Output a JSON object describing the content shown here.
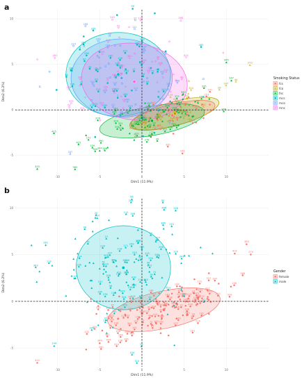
{
  "chart_data": [
    {
      "panel": "a",
      "type": "scatter",
      "xlabel": "Dim1 (11.9%)",
      "ylabel": "Dim2 (6.2%)",
      "xlim": [
        -15,
        15
      ],
      "ylim": [
        -7,
        11
      ],
      "x_ticks": [
        "-10",
        "-5",
        "0",
        "5",
        "10"
      ],
      "y_ticks": [
        "-5",
        "0",
        "5",
        "10"
      ],
      "x_tick_values": [
        -10,
        -5,
        0,
        5,
        10
      ],
      "y_tick_values": [
        -5,
        0,
        5,
        10
      ],
      "legend_title": "Smoking Status",
      "legend_placement": "right",
      "series": [
        {
          "name": "fcs",
          "color": "#F8766D",
          "centroid": [
            3.6,
            -0.6
          ],
          "ellipse": [
            5.2,
            1.2,
            14
          ],
          "spread": [
            2.6,
            1.0
          ],
          "count": 40
        },
        {
          "name": "fco",
          "color": "#B79F00",
          "centroid": [
            3.9,
            -0.4
          ],
          "ellipse": [
            5.4,
            1.3,
            15
          ],
          "spread": [
            2.5,
            1.1
          ],
          "count": 40
        },
        {
          "name": "fnc",
          "color": "#00BA38",
          "centroid": [
            1.2,
            -1.2
          ],
          "ellipse": [
            6.3,
            1.6,
            10
          ],
          "spread": [
            3.8,
            1.3
          ],
          "count": 85
        },
        {
          "name": "mcs",
          "color": "#00BFC4",
          "centroid": [
            -2.8,
            3.9
          ],
          "ellipse": [
            6.2,
            4.6,
            0
          ],
          "spread": [
            3.6,
            3.1
          ],
          "count": 60
        },
        {
          "name": "mco",
          "color": "#619CFF",
          "centroid": [
            -2.4,
            3.5
          ],
          "ellipse": [
            6.0,
            4.3,
            0
          ],
          "spread": [
            3.5,
            2.9
          ],
          "count": 50
        },
        {
          "name": "mnc",
          "color": "#F564E3",
          "centroid": [
            -0.9,
            3.1
          ],
          "ellipse": [
            6.3,
            4.2,
            -8
          ],
          "spread": [
            3.9,
            2.8
          ],
          "count": 55
        }
      ],
      "point_labels": [
        {
          "x": -1.1,
          "y": 11.3,
          "text": "56",
          "s": 3
        },
        {
          "x": -3.5,
          "y": 10.1,
          "text": "240",
          "s": 5
        },
        {
          "x": 4.6,
          "y": 10.0,
          "text": "288",
          "s": 5
        },
        {
          "x": 10.0,
          "y": 5.4,
          "text": "345",
          "s": 2
        },
        {
          "x": 12.8,
          "y": 5.1,
          "text": "273",
          "s": 1
        },
        {
          "x": -12.4,
          "y": -6.3,
          "text": "420",
          "s": 2
        },
        {
          "x": -5.0,
          "y": -4.3,
          "text": "344",
          "s": 2
        },
        {
          "x": -10.3,
          "y": 5.9,
          "text": "281",
          "s": 5
        },
        {
          "x": 10.6,
          "y": 3.4,
          "text": "347",
          "s": 2
        },
        {
          "x": 4.8,
          "y": -4.6,
          "text": "161",
          "s": 0
        }
      ]
    },
    {
      "panel": "b",
      "type": "scatter",
      "xlabel": "Dim1 (11.9%)",
      "ylabel": "Dim2 (6.2%)",
      "xlim": [
        -15,
        15
      ],
      "ylim": [
        -7,
        11
      ],
      "x_ticks": [
        "-10",
        "-5",
        "0",
        "5",
        "10"
      ],
      "y_ticks": [
        "-5",
        "0",
        "5",
        "10"
      ],
      "x_tick_values": [
        -10,
        -5,
        0,
        5,
        10
      ],
      "y_tick_values": [
        -5,
        0,
        5,
        10
      ],
      "legend_title": "Gender",
      "legend_placement": "right",
      "series": [
        {
          "name": "female",
          "color": "#F8766D",
          "centroid": [
            2.6,
            -0.9
          ],
          "ellipse": [
            6.8,
            2.0,
            12
          ],
          "spread": [
            3.9,
            1.3
          ],
          "count": 170
        },
        {
          "name": "male",
          "color": "#00BFC4",
          "centroid": [
            -2.2,
            3.6
          ],
          "ellipse": [
            5.6,
            4.5,
            0
          ],
          "spread": [
            3.8,
            3.2
          ],
          "count": 150
        }
      ],
      "point_labels": [
        {
          "x": -1.2,
          "y": 11.1,
          "text": "56",
          "s": 1
        },
        {
          "x": 4.0,
          "y": 9.9,
          "text": "128",
          "s": 1
        },
        {
          "x": -5.3,
          "y": 9.1,
          "text": "210",
          "s": 1
        },
        {
          "x": 12.4,
          "y": 6.3,
          "text": "380",
          "s": 0
        },
        {
          "x": 12.9,
          "y": 5.2,
          "text": "273",
          "s": 0
        },
        {
          "x": 11.0,
          "y": 5.3,
          "text": "402",
          "s": 0
        },
        {
          "x": -12.4,
          "y": -6.4,
          "text": "420",
          "s": 0
        },
        {
          "x": -11.4,
          "y": 6.2,
          "text": "281",
          "s": 1
        },
        {
          "x": -10.4,
          "y": -4.6,
          "text": "144",
          "s": 1
        },
        {
          "x": -5.0,
          "y": -4.3,
          "text": "344",
          "s": 0
        }
      ]
    }
  ]
}
